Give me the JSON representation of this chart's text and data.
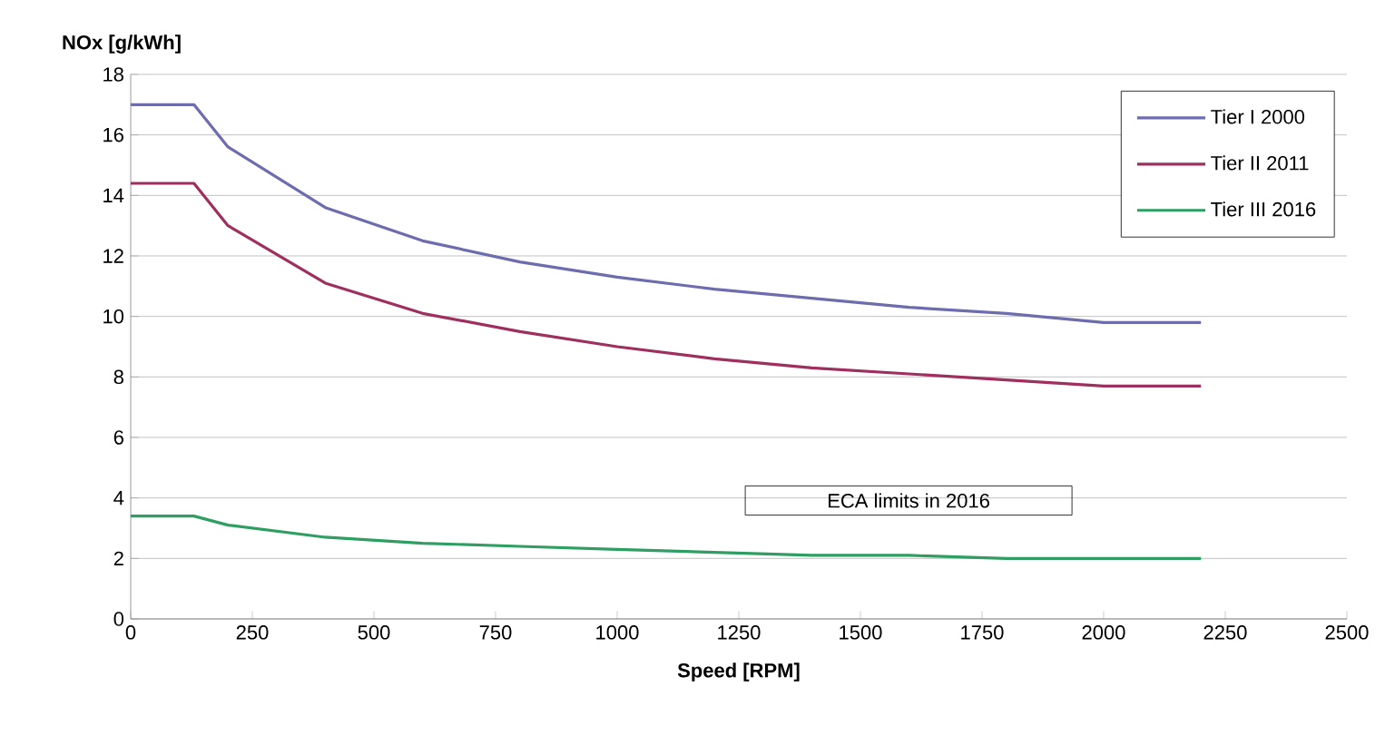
{
  "chart_data": {
    "type": "line",
    "ylabel": "NOx [g/kWh]",
    "xlabel": "Speed [RPM]",
    "xlim": [
      0,
      2500
    ],
    "xticks": [
      0,
      250,
      500,
      750,
      1000,
      1250,
      1500,
      1750,
      2000,
      2250,
      2500
    ],
    "ylim": [
      0,
      18
    ],
    "yticks": [
      0,
      2,
      4,
      6,
      8,
      10,
      12,
      14,
      16,
      18
    ],
    "grid": "y",
    "legend": "top right",
    "marker": "none",
    "line_style": "solid",
    "annotations": [
      "ECA limits in 2016"
    ],
    "series": [
      {
        "name": "Tier I 2000",
        "color": "#6c6cae",
        "x": [
          0,
          130,
          200,
          400,
          600,
          800,
          1000,
          1200,
          1400,
          1600,
          1800,
          2000,
          2200
        ],
        "values": [
          17.0,
          17.0,
          15.6,
          13.6,
          12.5,
          11.8,
          11.3,
          10.9,
          10.6,
          10.3,
          10.1,
          9.8,
          9.8
        ]
      },
      {
        "name": "Tier II 2011",
        "color": "#9e2f5e",
        "x": [
          0,
          130,
          200,
          400,
          600,
          800,
          1000,
          1200,
          1400,
          1600,
          1800,
          2000,
          2200
        ],
        "values": [
          14.4,
          14.4,
          13.0,
          11.1,
          10.1,
          9.5,
          9.0,
          8.6,
          8.3,
          8.1,
          7.9,
          7.7,
          7.7
        ]
      },
      {
        "name": "Tier III 2016",
        "color": "#2f9e62",
        "x": [
          0,
          130,
          200,
          400,
          600,
          800,
          1000,
          1200,
          1400,
          1600,
          1800,
          2000,
          2200
        ],
        "values": [
          3.4,
          3.4,
          3.1,
          2.7,
          2.5,
          2.4,
          2.3,
          2.2,
          2.1,
          2.1,
          2.0,
          2.0,
          2.0
        ]
      }
    ]
  }
}
